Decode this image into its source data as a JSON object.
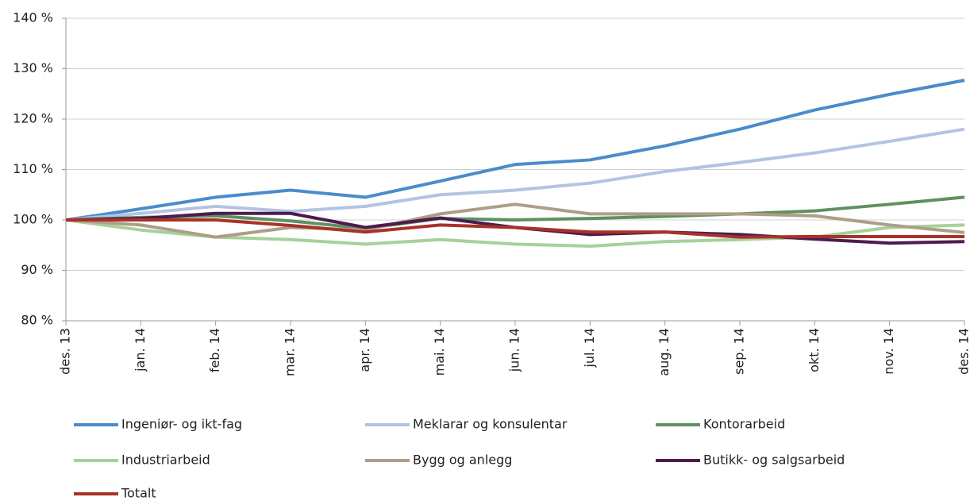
{
  "chart_data": {
    "type": "line",
    "categories": [
      "des. 13",
      "jan. 14",
      "feb. 14",
      "mar. 14",
      "apr. 14",
      "mai. 14",
      "jun. 14",
      "jul. 14",
      "aug. 14",
      "sep. 14",
      "okt. 14",
      "nov. 14",
      "des. 14"
    ],
    "series": [
      {
        "name": "Ingeniør- og ikt-fag",
        "color": "#4a8ccb",
        "values": [
          100,
          102.2,
          104.5,
          105.9,
          104.5,
          107.7,
          111,
          111.9,
          114.7,
          118,
          121.8,
          124.9,
          127.7
        ]
      },
      {
        "name": "Meklarar og konsulentar",
        "color": "#b3c3e3",
        "values": [
          100,
          101.3,
          102.7,
          101.7,
          102.7,
          105,
          105.9,
          107.3,
          109.6,
          111.4,
          113.3,
          115.6,
          118
        ]
      },
      {
        "name": "Kontorarbeid",
        "color": "#5f9060",
        "values": [
          100,
          100.5,
          100.8,
          99.8,
          98.3,
          100.3,
          100,
          100.3,
          100.7,
          101.2,
          101.8,
          103.1,
          104.5
        ]
      },
      {
        "name": "Industriarbeid",
        "color": "#a6d19a",
        "values": [
          100,
          98,
          96.6,
          96.1,
          95.2,
          96.1,
          95.2,
          94.8,
          95.7,
          96.1,
          96.6,
          98.5,
          99
        ]
      },
      {
        "name": "Bygg og anlegg",
        "color": "#ad9e87",
        "values": [
          100,
          99,
          96.6,
          98.5,
          98,
          101.2,
          103.1,
          101.2,
          101.2,
          101.2,
          100.8,
          99,
          97.5
        ]
      },
      {
        "name": "Butikk- og salgsarbeid",
        "color": "#4e1a4f",
        "values": [
          100,
          100.3,
          101.3,
          101.3,
          98.5,
          100.4,
          98.5,
          97.1,
          97.6,
          97.1,
          96.2,
          95.4,
          95.7
        ]
      },
      {
        "name": "Totalt",
        "color": "#a83228",
        "values": [
          100,
          100,
          100,
          98.9,
          97.6,
          99,
          98.5,
          97.6,
          97.6,
          96.6,
          96.7,
          96.7,
          96.7
        ]
      }
    ],
    "ylim": [
      80,
      140
    ],
    "yticks": [
      {
        "value": 80,
        "label": "80 %"
      },
      {
        "value": 90,
        "label": "90 %"
      },
      {
        "value": 100,
        "label": "100 %"
      },
      {
        "value": 110,
        "label": "110 %"
      },
      {
        "value": 120,
        "label": "120 %"
      },
      {
        "value": 130,
        "label": "130 %"
      },
      {
        "value": 140,
        "label": "140 %"
      }
    ],
    "grid": true
  }
}
